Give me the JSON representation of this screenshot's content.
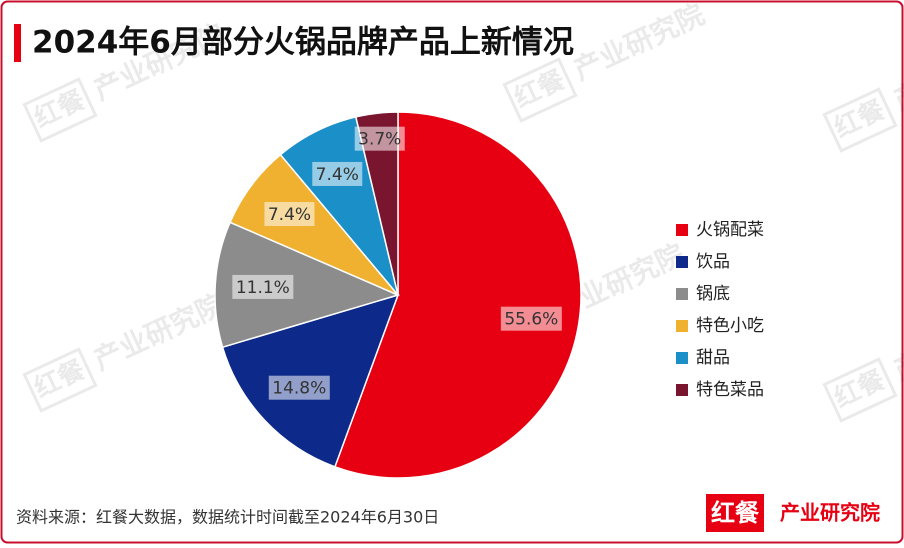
{
  "chart_data": {
    "type": "pie",
    "title": "2024年6月部分火锅品牌产品上新情况",
    "categories": [
      "火锅配菜",
      "饮品",
      "锅底",
      "特色小吃",
      "甜品",
      "特色菜品"
    ],
    "values": [
      55.6,
      14.8,
      11.1,
      7.4,
      7.4,
      3.7
    ],
    "value_labels": [
      "55.6%",
      "14.8%",
      "11.1%",
      "7.4%",
      "7.4%",
      "3.7%"
    ],
    "colors": [
      "#e60012",
      "#0d2a8a",
      "#8c8c8c",
      "#f0b030",
      "#1a8fc8",
      "#7a1530"
    ],
    "legend": "right",
    "source": "资料来源：红餐大数据，数据统计时间截至2024年6月30日",
    "logo": {
      "brand": "红餐",
      "name": "产业研究院"
    }
  }
}
